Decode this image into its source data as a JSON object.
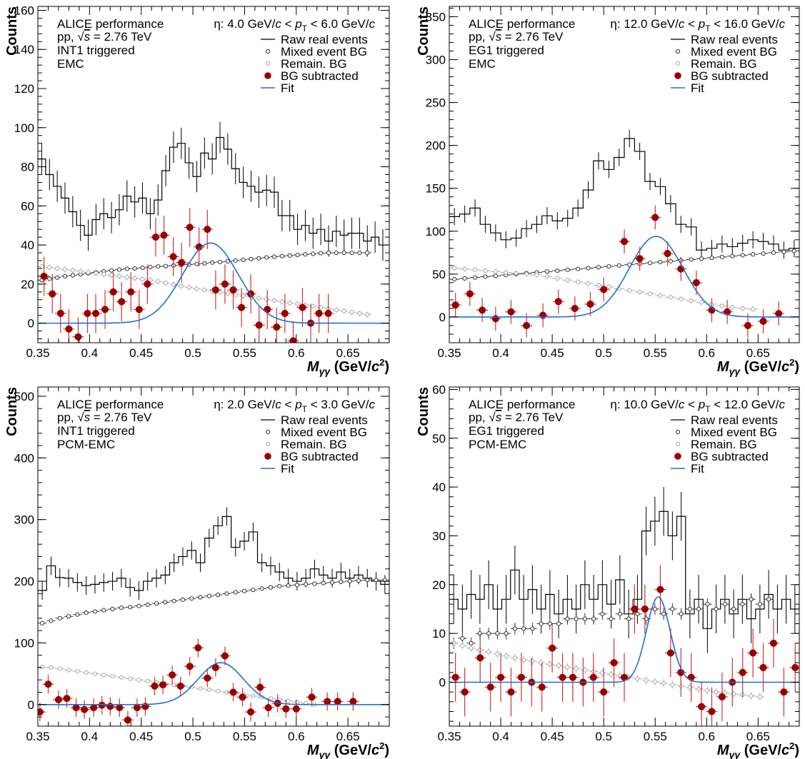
{
  "figure": {
    "experiment": "ALICE performance",
    "system_prefix": "pp, ",
    "system_sqrt": "s",
    "system_energy": " = 2.76 TeV",
    "xlabel_main": "M",
    "xlabel_sub": "γγ",
    "xlabel_unit": " (GeV/",
    "xlabel_c": "c",
    "xlabel_pow": "2",
    "xlabel_close": ")",
    "ylabel": "Counts",
    "legend": {
      "raw": "Raw real events",
      "mixed": "Mixed event BG",
      "remain": "Remain. BG",
      "sub": "BG subtracted",
      "fit": "Fit"
    },
    "colors": {
      "raw": "#000000",
      "mixed": "#333333",
      "remain": "#aaaaaa",
      "sub": "#990000",
      "sub_err": "#cc3333",
      "fit": "#1f6fd0"
    }
  },
  "chart_data": [
    {
      "type": "line",
      "trigger": "INT1 triggered",
      "method": "EMC",
      "pt_text": [
        "η: 4.0 GeV/",
        "c",
        " < ",
        "p",
        "T",
        " < 6.0 GeV/",
        "c"
      ],
      "xlim": [
        0.35,
        0.69
      ],
      "ylim": [
        -10,
        162
      ],
      "xticks": [
        "0.35",
        "0.4",
        "0.45",
        "0.5",
        "0.55",
        "0.6",
        "0.65"
      ],
      "yticks": [
        "0",
        "20",
        "40",
        "60",
        "80",
        "100",
        "120",
        "140",
        "160"
      ],
      "x_start": 0.35,
      "bin_width": 0.0075,
      "raw": [
        84,
        76,
        70,
        64,
        57,
        50,
        45,
        53,
        56,
        54,
        58,
        65,
        62,
        64,
        56,
        63,
        78,
        90,
        92,
        82,
        75,
        87,
        84,
        95,
        89,
        79,
        72,
        70,
        67,
        68,
        67,
        55,
        55,
        48,
        50,
        46,
        48,
        42,
        47,
        45,
        46,
        46,
        42,
        44,
        40
      ],
      "raw_err": 8,
      "mixed": [
        22,
        22.7,
        23.3,
        24,
        24.5,
        25,
        25.5,
        26,
        26.5,
        27,
        27.4,
        27.8,
        28,
        28.3,
        28.7,
        29,
        29.2,
        29.5,
        29.8,
        30,
        30.3,
        30.6,
        31,
        31.3,
        31.6,
        32,
        32.4,
        32.8,
        33.2,
        33.6,
        34,
        34.3,
        34.6,
        34.9,
        35.2,
        35.5,
        35.8,
        36,
        36,
        36,
        36,
        36,
        36
      ],
      "mixed_err": 1,
      "remain": [
        29,
        28.5,
        28,
        27.5,
        27,
        26.5,
        26,
        25.5,
        25,
        24.5,
        24,
        23.5,
        23,
        22.5,
        22,
        21.3,
        20.5,
        19.8,
        19,
        18.3,
        17.6,
        17,
        16.4,
        15.8,
        15.2,
        14.6,
        14,
        13.4,
        12.8,
        12.2,
        11.6,
        11,
        10.4,
        9.8,
        9.2,
        8.6,
        8,
        7.4,
        6.8,
        6.2,
        5.6,
        5,
        4.4
      ],
      "remain_err": 1.5,
      "sub": [
        [
          0.356,
          24
        ],
        [
          0.364,
          15
        ],
        [
          0.372,
          5
        ],
        [
          0.38,
          -3
        ],
        [
          0.389,
          -7
        ],
        [
          0.398,
          5
        ],
        [
          0.406,
          5
        ],
        [
          0.415,
          7
        ],
        [
          0.423,
          16
        ],
        [
          0.431,
          11
        ],
        [
          0.44,
          16
        ],
        [
          0.448,
          7
        ],
        [
          0.456,
          20
        ],
        [
          0.464,
          44
        ],
        [
          0.472,
          45
        ],
        [
          0.481,
          34
        ],
        [
          0.489,
          31
        ],
        [
          0.497,
          49
        ],
        [
          0.506,
          39
        ],
        [
          0.514,
          48
        ],
        [
          0.522,
          17
        ],
        [
          0.531,
          20
        ],
        [
          0.539,
          17
        ],
        [
          0.547,
          8
        ],
        [
          0.556,
          15
        ],
        [
          0.564,
          -1
        ],
        [
          0.572,
          7
        ],
        [
          0.581,
          -2
        ],
        [
          0.589,
          5
        ],
        [
          0.597,
          -9
        ],
        [
          0.606,
          8
        ],
        [
          0.614,
          0
        ],
        [
          0.622,
          5
        ],
        [
          0.631,
          5
        ]
      ],
      "sub_err": 10,
      "fit": {
        "amplitude": 41,
        "mean": 0.517,
        "sigma": 0.027,
        "baseline": 0
      }
    },
    {
      "type": "line",
      "trigger": "EG1 triggered",
      "method": "EMC",
      "pt_text": [
        "η: 12.0 GeV/",
        "c",
        " < ",
        "p",
        "T",
        " < 16.0 GeV/",
        "c"
      ],
      "xlim": [
        0.35,
        0.69
      ],
      "ylim": [
        -30,
        362
      ],
      "xticks": [
        "0.35",
        "0.4",
        "0.45",
        "0.5",
        "0.55",
        "0.6",
        "0.65"
      ],
      "yticks": [
        "0",
        "50",
        "100",
        "150",
        "200",
        "250",
        "300",
        "350"
      ],
      "x_start": 0.35,
      "bin_width": 0.01,
      "raw": [
        117,
        120,
        127,
        108,
        98,
        90,
        92,
        103,
        108,
        118,
        112,
        115,
        127,
        148,
        182,
        172,
        186,
        208,
        193,
        158,
        152,
        132,
        108,
        105,
        78,
        80,
        85,
        82,
        86,
        90,
        88,
        85,
        78,
        80
      ],
      "raw_err": 10,
      "mixed": [
        44,
        45,
        46,
        47,
        48,
        49,
        50,
        51,
        52,
        53,
        54,
        55,
        56,
        57,
        58,
        59,
        60,
        61,
        62,
        63,
        64,
        65,
        66,
        67,
        68,
        69,
        70,
        71,
        72,
        73,
        74,
        75,
        76,
        77
      ],
      "mixed_err": 1.5,
      "remain": [
        57,
        56,
        55,
        54,
        53,
        52,
        51,
        50,
        49,
        47,
        45,
        43,
        41,
        39,
        37,
        35,
        33,
        31,
        29,
        27,
        25,
        23,
        21,
        19,
        17,
        15,
        13,
        11,
        10,
        9
      ],
      "remain_err": 3,
      "sub": [
        [
          0.356,
          14
        ],
        [
          0.37,
          27
        ],
        [
          0.382,
          8
        ],
        [
          0.395,
          -2
        ],
        [
          0.41,
          6
        ],
        [
          0.425,
          -10
        ],
        [
          0.441,
          2
        ],
        [
          0.456,
          18
        ],
        [
          0.472,
          10
        ],
        [
          0.487,
          15
        ],
        [
          0.5,
          32
        ],
        [
          0.52,
          88
        ],
        [
          0.535,
          68
        ],
        [
          0.55,
          116
        ],
        [
          0.562,
          74
        ],
        [
          0.575,
          56
        ],
        [
          0.59,
          40
        ],
        [
          0.605,
          8
        ],
        [
          0.62,
          6
        ],
        [
          0.64,
          -10
        ],
        [
          0.655,
          -5
        ],
        [
          0.67,
          4
        ]
      ],
      "sub_err": 14,
      "fit": {
        "amplitude": 94,
        "mean": 0.551,
        "sigma": 0.026,
        "baseline": 0
      }
    },
    {
      "type": "line",
      "trigger": "INT1 triggered",
      "method": "PCM-EMC",
      "pt_text": [
        "η: 2.0 GeV/",
        "c",
        " < ",
        "p",
        "T",
        " < 3.0 GeV/",
        "c"
      ],
      "xlim": [
        0.35,
        0.69
      ],
      "ylim": [
        -35,
        515
      ],
      "xticks": [
        "0.35",
        "0.4",
        "0.45",
        "0.5",
        "0.55",
        "0.6",
        "0.65"
      ],
      "yticks": [
        "0",
        "100",
        "200",
        "300",
        "400",
        "500"
      ],
      "x_start": 0.35,
      "bin_width": 0.0085,
      "raw": [
        185,
        225,
        206,
        205,
        198,
        193,
        195,
        198,
        200,
        205,
        190,
        185,
        200,
        205,
        210,
        230,
        240,
        250,
        230,
        270,
        290,
        305,
        255,
        265,
        280,
        230,
        225,
        215,
        205,
        200,
        205,
        220,
        210,
        205,
        215,
        205,
        210,
        205,
        200,
        195
      ],
      "raw_err": 15,
      "mixed": [
        132,
        136,
        140,
        143,
        146,
        149,
        151,
        153,
        155,
        157,
        158,
        160,
        162,
        164,
        166,
        168,
        170,
        172,
        174,
        176,
        178,
        180,
        182,
        184,
        186,
        188,
        190,
        192,
        193,
        194,
        195,
        196,
        197,
        198,
        199,
        200,
        201,
        202,
        202,
        202
      ],
      "mixed_err": 3,
      "remain": [
        61,
        60,
        58,
        56,
        54,
        52,
        50,
        48,
        46,
        44,
        42,
        40,
        38,
        36,
        34,
        32,
        30,
        28,
        26,
        24,
        22,
        20,
        18,
        16,
        14,
        12,
        10,
        8,
        6,
        4,
        2,
        0
      ],
      "remain_err": 3,
      "sub": [
        [
          0.352,
          -12
        ],
        [
          0.36,
          33
        ],
        [
          0.37,
          8
        ],
        [
          0.378,
          10
        ],
        [
          0.387,
          -5
        ],
        [
          0.395,
          -8
        ],
        [
          0.404,
          -5
        ],
        [
          0.412,
          -1
        ],
        [
          0.42,
          -3
        ],
        [
          0.429,
          -5
        ],
        [
          0.437,
          -25
        ],
        [
          0.446,
          -5
        ],
        [
          0.454,
          -3
        ],
        [
          0.463,
          30
        ],
        [
          0.471,
          32
        ],
        [
          0.48,
          48
        ],
        [
          0.488,
          30
        ],
        [
          0.497,
          62
        ],
        [
          0.505,
          92
        ],
        [
          0.514,
          43
        ],
        [
          0.522,
          60
        ],
        [
          0.531,
          79
        ],
        [
          0.539,
          20
        ],
        [
          0.548,
          12
        ],
        [
          0.556,
          -12
        ],
        [
          0.565,
          28
        ],
        [
          0.573,
          -5
        ],
        [
          0.582,
          2
        ],
        [
          0.59,
          -7
        ],
        [
          0.6,
          -7
        ],
        [
          0.615,
          12
        ],
        [
          0.63,
          5
        ],
        [
          0.64,
          5
        ],
        [
          0.655,
          5
        ]
      ],
      "sub_err": 15,
      "fit": {
        "amplitude": 68,
        "mean": 0.527,
        "sigma": 0.022,
        "baseline": 0
      }
    },
    {
      "type": "line",
      "trigger": "EG1 triggered",
      "method": "PCM-EMC",
      "pt_text": [
        "η: 10.0 GeV/",
        "c",
        " < ",
        "p",
        "T",
        " < 12.0 GeV/",
        "c"
      ],
      "xlim": [
        0.35,
        0.69
      ],
      "ylim": [
        -9,
        60.5
      ],
      "xticks": [
        "0.35",
        "0.4",
        "0.45",
        "0.5",
        "0.55",
        "0.6",
        "0.65"
      ],
      "yticks": [
        "0",
        "10",
        "20",
        "30",
        "40",
        "50",
        "60"
      ],
      "x_start": 0.35,
      "bin_width": 0.0085,
      "raw": [
        17,
        15,
        18,
        17,
        20,
        15,
        17,
        23,
        17,
        19,
        15,
        18,
        14,
        17,
        15,
        20,
        17,
        20,
        16,
        21,
        14,
        17,
        31,
        33,
        35,
        30,
        34,
        14,
        17,
        11,
        15,
        17,
        14,
        17,
        13,
        15,
        18,
        15,
        17,
        15,
        16
      ],
      "raw_err": 5,
      "mixed": [
        8,
        9,
        8,
        10,
        10,
        10,
        10,
        11,
        11,
        11,
        12,
        12,
        12,
        13,
        13,
        13,
        13,
        14,
        13,
        14,
        13,
        14,
        13,
        15,
        14,
        15,
        14,
        15,
        15,
        16,
        15,
        16,
        15,
        16,
        17,
        16,
        17
      ],
      "mixed_err": 1.2,
      "remain": [
        8,
        7.5,
        7,
        6.6,
        6.2,
        5.8,
        5.4,
        5,
        4.6,
        4.3,
        4,
        3.7,
        3.4,
        3.1,
        2.8,
        2.5,
        2.2,
        1.9,
        1.6,
        1.3,
        1,
        0.7,
        0.4,
        0.1,
        -0.2,
        -0.5,
        -0.8,
        -1.1,
        -1.4,
        -1.7,
        -2,
        -2.2,
        -2.4,
        -2.6,
        -2.8,
        -3
      ],
      "remain_err": 0.8,
      "sub": [
        [
          0.356,
          1
        ],
        [
          0.365,
          -2
        ],
        [
          0.38,
          5
        ],
        [
          0.39,
          -1
        ],
        [
          0.4,
          1
        ],
        [
          0.41,
          -2
        ],
        [
          0.42,
          1
        ],
        [
          0.43,
          0
        ],
        [
          0.44,
          -1
        ],
        [
          0.45,
          7
        ],
        [
          0.46,
          1
        ],
        [
          0.47,
          1
        ],
        [
          0.48,
          0
        ],
        [
          0.49,
          1
        ],
        [
          0.5,
          -2
        ],
        [
          0.51,
          4
        ],
        [
          0.52,
          1
        ],
        [
          0.53,
          15
        ],
        [
          0.54,
          15
        ],
        [
          0.555,
          19
        ],
        [
          0.565,
          6
        ],
        [
          0.575,
          2
        ],
        [
          0.585,
          1
        ],
        [
          0.595,
          -5
        ],
        [
          0.605,
          -6
        ],
        [
          0.615,
          -3
        ],
        [
          0.625,
          0
        ],
        [
          0.635,
          2
        ],
        [
          0.645,
          6
        ],
        [
          0.655,
          3
        ],
        [
          0.665,
          8
        ],
        [
          0.675,
          -2
        ],
        [
          0.686,
          3
        ]
      ],
      "sub_err": 5,
      "fit": {
        "amplitude": 17.5,
        "mean": 0.553,
        "sigma": 0.0115,
        "baseline": 0
      }
    }
  ]
}
